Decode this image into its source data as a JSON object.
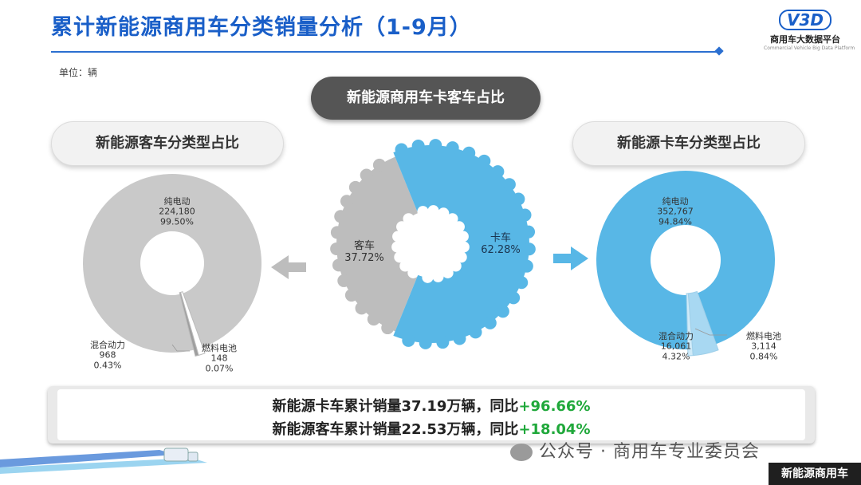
{
  "header": {
    "title": "累计新能源商用车分类销量分析（1-9月）",
    "unit_label": "单位：辆",
    "logo_mark": "V3D",
    "logo_name": "商用车大数据平台",
    "logo_sub": "Commercial Vehicle Big Data Platform"
  },
  "pills": {
    "center": "新能源商用车卡客车占比",
    "left": "新能源客车分类型占比",
    "right": "新能源卡车分类型占比"
  },
  "chart_data": [
    {
      "type": "pie",
      "role": "center",
      "title": "新能源商用车卡客车占比",
      "slices": [
        {
          "label": "客车",
          "percent_label": "37.72%",
          "percent": 37.72,
          "color": "#bdbdbd"
        },
        {
          "label": "卡车",
          "percent_label": "62.28%",
          "percent": 62.28,
          "color": "#58b7e6"
        }
      ]
    },
    {
      "type": "pie",
      "role": "left",
      "title": "新能源客车分类型占比",
      "slices": [
        {
          "label": "纯电动",
          "value": 224180,
          "value_label": "224,180",
          "percent": 99.5,
          "percent_label": "99.50%",
          "color": "#c9c9c9"
        },
        {
          "label": "混合动力",
          "value": 968,
          "value_label": "968",
          "percent": 0.43,
          "percent_label": "0.43%",
          "color": "#ffffff"
        },
        {
          "label": "燃料电池",
          "value": 148,
          "value_label": "148",
          "percent": 0.07,
          "percent_label": "0.07%",
          "color": "#9e9e9e"
        }
      ]
    },
    {
      "type": "pie",
      "role": "right",
      "title": "新能源卡车分类型占比",
      "slices": [
        {
          "label": "纯电动",
          "value": 352767,
          "value_label": "352,767",
          "percent": 94.84,
          "percent_label": "94.84%",
          "color": "#58b7e6"
        },
        {
          "label": "混合动力",
          "value": 16061,
          "value_label": "16,061",
          "percent": 4.32,
          "percent_label": "4.32%",
          "color": "#a8d8f2"
        },
        {
          "label": "燃料电池",
          "value": 3114,
          "value_label": "3,114",
          "percent": 0.84,
          "percent_label": "0.84%",
          "color": "#cfeaf8"
        }
      ]
    }
  ],
  "summary": {
    "truck_text": "新能源卡车累计销量37.19万辆，同比",
    "truck_growth": "+96.66%",
    "bus_text": "新能源客车累计销量22.53万辆，同比",
    "bus_growth": "+18.04%"
  },
  "watermark": "公众号 · 商用车专业委员会",
  "corner_tag": "新能源商用车",
  "colors": {
    "title_blue": "#1a5fc8",
    "truck_blue": "#58b7e6",
    "bus_gray": "#bdbdbd",
    "growth_green": "#1fa83a"
  }
}
